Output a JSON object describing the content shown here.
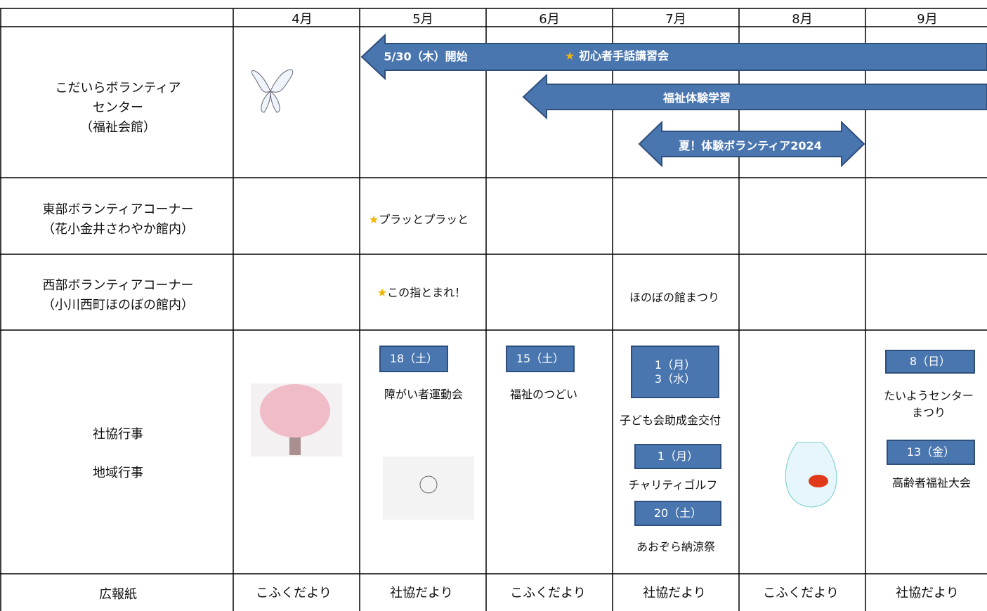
{
  "table": {
    "months": [
      "4月",
      "5月",
      "6月",
      "7月",
      "8月",
      "9月"
    ],
    "rows": [
      {
        "label": [
          "こだいらボランティア",
          "センター",
          "（福祉会館）"
        ]
      },
      {
        "label": [
          "東部ボランティアコーナー",
          "（花小金井さわやか館内）"
        ],
        "may": "プラッとプラッと"
      },
      {
        "label": [
          "西部ボランティアコーナー",
          "（小川西町ほのぼの館内）"
        ],
        "may": "この指とまれ！",
        "july": "ほのぼの館まつり"
      },
      {
        "label": [
          "社協行事",
          "地域行事"
        ]
      },
      {
        "label": [
          "広報紙"
        ],
        "newsletters": [
          "こふくだより",
          "社協だより",
          "こふくだより",
          "社協だより",
          "こふくだより",
          "社協だより"
        ]
      }
    ]
  },
  "arrows": [
    {
      "start": "5/30（木）開始",
      "title": "初心者手話講習会"
    },
    {
      "title": "福祉体験学習"
    },
    {
      "title": "夏！体験ボランティア2024"
    }
  ],
  "events": {
    "may": {
      "date": "18（土）",
      "name": "障がい者運動会"
    },
    "june": {
      "date": "15（土）",
      "name": "福祉のつどい"
    },
    "july": [
      {
        "date": [
          "1（月）",
          "3（水）"
        ],
        "name": "子ども会助成金交付"
      },
      {
        "date": "1（月）",
        "name": "チャリティゴルフ"
      },
      {
        "date": "20（土）",
        "name": "あおぞら納涼祭"
      }
    ],
    "september": [
      {
        "date": "8（日）",
        "name": [
          "たいようセンター",
          "まつり"
        ]
      },
      {
        "date": "13（金）",
        "name": "高齢者福祉大会"
      }
    ]
  }
}
